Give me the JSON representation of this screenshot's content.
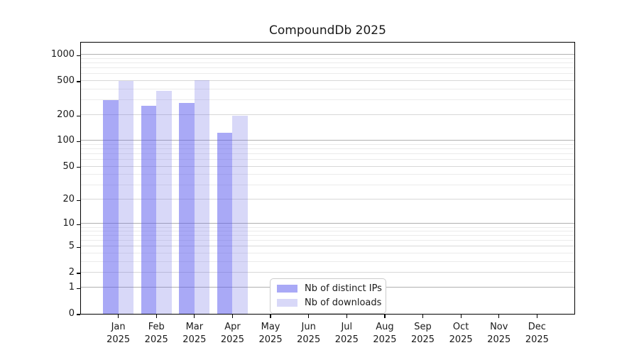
{
  "chart_data": {
    "type": "bar",
    "title": "CompoundDb 2025",
    "x_labels": [
      {
        "month": "Jan",
        "year": "2025"
      },
      {
        "month": "Feb",
        "year": "2025"
      },
      {
        "month": "Mar",
        "year": "2025"
      },
      {
        "month": "Apr",
        "year": "2025"
      },
      {
        "month": "May",
        "year": "2025"
      },
      {
        "month": "Jun",
        "year": "2025"
      },
      {
        "month": "Jul",
        "year": "2025"
      },
      {
        "month": "Aug",
        "year": "2025"
      },
      {
        "month": "Sep",
        "year": "2025"
      },
      {
        "month": "Oct",
        "year": "2025"
      },
      {
        "month": "Nov",
        "year": "2025"
      },
      {
        "month": "Dec",
        "year": "2025"
      }
    ],
    "series": [
      {
        "name": "Nb of distinct IPs",
        "color": "rgba(83,83,237,0.5)",
        "values": [
          300,
          257,
          277,
          124,
          null,
          null,
          null,
          null,
          null,
          null,
          null,
          null
        ]
      },
      {
        "name": "Nb of downloads",
        "color": "rgba(105,105,228,0.26)",
        "values": [
          500,
          386,
          510,
          196,
          null,
          null,
          null,
          null,
          null,
          null,
          null,
          null
        ]
      }
    ],
    "yscale": "log10(value+1)",
    "yticks": [
      0,
      1,
      2,
      5,
      10,
      20,
      50,
      100,
      200,
      500,
      1000
    ],
    "ylim": [
      0,
      1460
    ],
    "legend_position": "lower center",
    "grid": {
      "major": [
        1,
        10,
        100,
        1000
      ],
      "major_color": "#b0b0b0",
      "labeled_minor": [
        2,
        5,
        20,
        50,
        200,
        500
      ],
      "labeled_minor_color": "#d8d8d8",
      "unlabeled_minor": [
        3,
        4,
        6,
        7,
        8,
        9,
        30,
        40,
        60,
        70,
        80,
        90,
        300,
        400,
        600,
        700,
        800,
        900
      ],
      "unlabeled_minor_color": "#ebebeb"
    },
    "colors": {
      "spine": "#000000",
      "text": "#1a1a1a",
      "background": "#ffffff",
      "legend_border": "#cccccc"
    }
  }
}
